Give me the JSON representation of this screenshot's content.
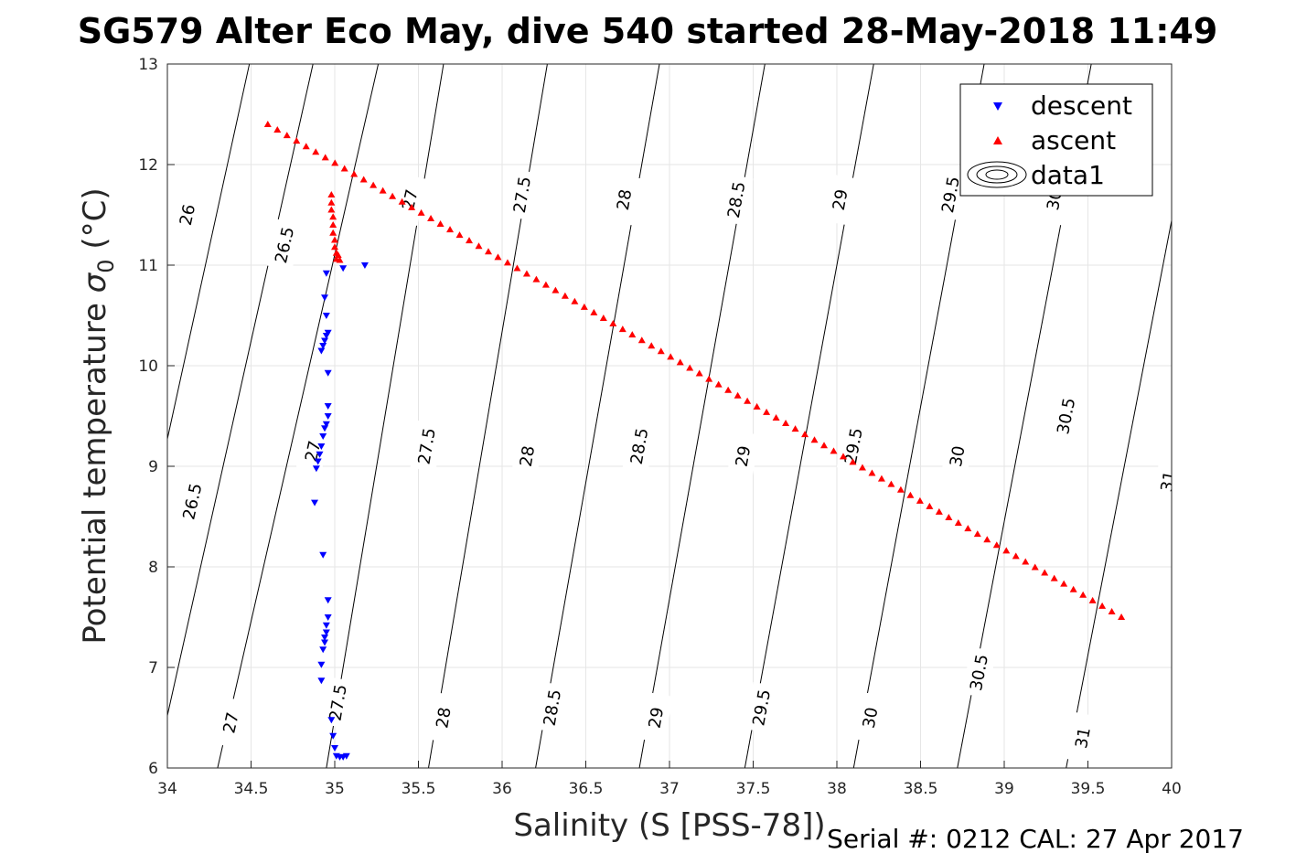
{
  "chart_data": {
    "type": "scatter",
    "title": "SG579 Alter Eco May, dive 540 started 28-May-2018 11:49",
    "xlabel": "Salinity (S [PSS-78])",
    "ylabel_main": "Potential temperature",
    "ylabel_symbol": "σ",
    "ylabel_sub": "0",
    "ylabel_unit": "(°C)",
    "xlim": [
      34,
      40
    ],
    "ylim": [
      6,
      13
    ],
    "xticks": [
      "34",
      "34.5",
      "35",
      "35.5",
      "36",
      "36.5",
      "37",
      "37.5",
      "38",
      "38.5",
      "39",
      "39.5",
      "40"
    ],
    "yticks": [
      "6",
      "7",
      "8",
      "9",
      "10",
      "11",
      "12",
      "13"
    ],
    "grid": true,
    "legend_position": "top-right",
    "legend": [
      "descent",
      "ascent",
      "data1"
    ],
    "footer": "Serial #: 0212  CAL: 27 Apr 2017",
    "contours": {
      "color": "#000000",
      "levels": [
        {
          "label": "26",
          "x_at_t6": 33.57,
          "x_at_t13": 34.49,
          "label_pos": [
            [
              34.12,
              11.5
            ]
          ]
        },
        {
          "label": "26.5",
          "x_at_t6": 33.93,
          "x_at_t13": 34.87,
          "label_pos": [
            [
              34.15,
              8.65
            ],
            [
              34.7,
              11.2
            ]
          ]
        },
        {
          "label": "27",
          "x_at_t6": 34.3,
          "x_at_t13": 35.26,
          "label_pos": [
            [
              34.38,
              6.45
            ],
            [
              34.87,
              9.15
            ],
            [
              35.45,
              11.65
            ]
          ]
        },
        {
          "label": "27.5",
          "x_at_t6": 34.95,
          "x_at_t13": 35.65,
          "label_pos": [
            [
              35.02,
              6.65
            ],
            [
              35.55,
              9.2
            ],
            [
              36.12,
              11.7
            ]
          ]
        },
        {
          "label": "28",
          "x_at_t6": 35.56,
          "x_at_t13": 36.27,
          "label_pos": [
            [
              35.65,
              6.5
            ],
            [
              36.15,
              9.1
            ],
            [
              36.73,
              11.65
            ]
          ]
        },
        {
          "label": "28.5",
          "x_at_t6": 36.2,
          "x_at_t13": 36.94,
          "label_pos": [
            [
              36.3,
              6.6
            ],
            [
              36.82,
              9.2
            ],
            [
              37.4,
              11.65
            ]
          ]
        },
        {
          "label": "29",
          "x_at_t6": 36.82,
          "x_at_t13": 37.57,
          "label_pos": [
            [
              36.92,
              6.5
            ],
            [
              37.44,
              9.1
            ],
            [
              38.02,
              11.65
            ]
          ]
        },
        {
          "label": "29.5",
          "x_at_t6": 37.45,
          "x_at_t13": 38.22,
          "label_pos": [
            [
              37.55,
              6.6
            ],
            [
              38.1,
              9.2
            ],
            [
              38.68,
              11.7
            ]
          ]
        },
        {
          "label": "30",
          "x_at_t6": 38.1,
          "x_at_t13": 38.88,
          "label_pos": [
            [
              38.2,
              6.5
            ],
            [
              38.72,
              9.1
            ],
            [
              39.3,
              11.65
            ]
          ]
        },
        {
          "label": "30.5",
          "x_at_t6": 38.72,
          "x_at_t13": 39.52,
          "label_pos": [
            [
              38.85,
              6.95
            ],
            [
              39.37,
              9.5
            ]
          ]
        },
        {
          "label": "31",
          "x_at_t6": 39.37,
          "x_at_t13": 40.18,
          "label_pos": [
            [
              39.47,
              6.3
            ],
            [
              39.98,
              8.85
            ]
          ]
        }
      ]
    },
    "series": [
      {
        "name": "descent",
        "marker": "down-triangle",
        "color": "#0000ff",
        "points": [
          [
            35.18,
            11.0
          ],
          [
            35.05,
            10.97
          ],
          [
            34.95,
            10.92
          ],
          [
            34.94,
            10.68
          ],
          [
            34.95,
            10.5
          ],
          [
            34.96,
            10.33
          ],
          [
            34.95,
            10.3
          ],
          [
            34.94,
            10.25
          ],
          [
            34.93,
            10.2
          ],
          [
            34.92,
            10.15
          ],
          [
            34.96,
            9.93
          ],
          [
            34.96,
            9.6
          ],
          [
            34.96,
            9.5
          ],
          [
            34.95,
            9.42
          ],
          [
            34.94,
            9.38
          ],
          [
            34.93,
            9.3
          ],
          [
            34.92,
            9.2
          ],
          [
            34.91,
            9.12
          ],
          [
            34.9,
            9.05
          ],
          [
            34.89,
            8.98
          ],
          [
            34.88,
            8.64
          ],
          [
            34.93,
            8.12
          ],
          [
            34.96,
            7.67
          ],
          [
            34.96,
            7.5
          ],
          [
            34.95,
            7.42
          ],
          [
            34.95,
            7.35
          ],
          [
            34.94,
            7.3
          ],
          [
            34.94,
            7.25
          ],
          [
            34.93,
            7.18
          ],
          [
            34.92,
            7.03
          ],
          [
            34.92,
            6.87
          ],
          [
            34.98,
            6.48
          ],
          [
            34.99,
            6.32
          ],
          [
            35.0,
            6.2
          ],
          [
            35.01,
            6.12
          ],
          [
            35.03,
            6.11
          ],
          [
            35.05,
            6.11
          ],
          [
            35.07,
            6.12
          ]
        ]
      },
      {
        "name": "ascent",
        "marker": "up-triangle",
        "color": "#ff0000",
        "points": [
          [
            34.98,
            11.7
          ],
          [
            34.98,
            11.62
          ],
          [
            34.98,
            11.55
          ],
          [
            34.99,
            11.48
          ],
          [
            34.99,
            11.4
          ],
          [
            34.99,
            11.32
          ],
          [
            35.0,
            11.25
          ],
          [
            35.0,
            11.18
          ],
          [
            35.01,
            11.12
          ],
          [
            35.01,
            11.06
          ],
          [
            35.02,
            11.1
          ],
          [
            35.03,
            11.05
          ]
        ],
        "line": {
          "x_start": 34.6,
          "y_start": 12.4,
          "x_end": 39.7,
          "y_end": 7.5,
          "count": 90
        }
      }
    ]
  }
}
